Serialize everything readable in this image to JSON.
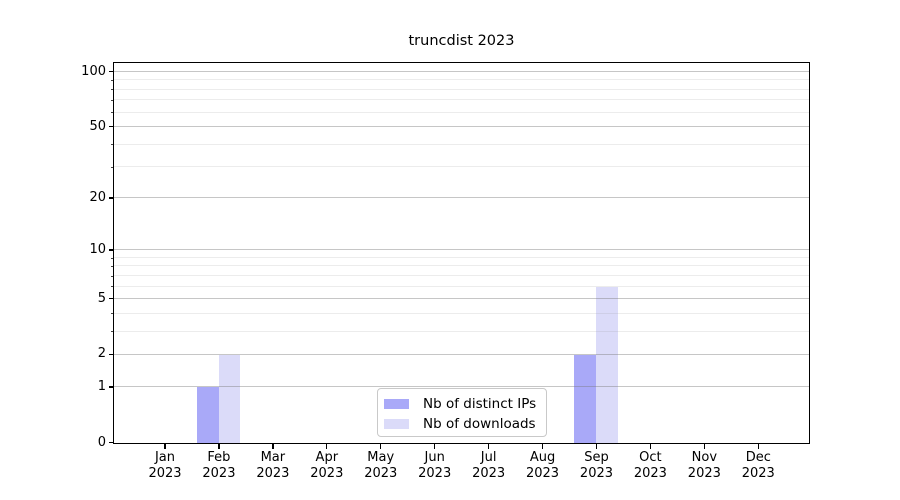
{
  "chart_data": {
    "type": "bar",
    "title": "truncdist 2023",
    "categories": [
      "Jan",
      "Feb",
      "Mar",
      "Apr",
      "May",
      "Jun",
      "Jul",
      "Aug",
      "Sep",
      "Oct",
      "Nov",
      "Dec"
    ],
    "x_year_label": "2023",
    "series": [
      {
        "name": "Nb of distinct IPs",
        "color": "#a9a9f8",
        "values": [
          0,
          1,
          0,
          0,
          0,
          0,
          0,
          0,
          2,
          0,
          0,
          0
        ]
      },
      {
        "name": "Nb of downloads",
        "color": "#dbdbf9",
        "values": [
          0,
          2,
          0,
          0,
          0,
          0,
          0,
          0,
          6,
          0,
          0,
          0
        ]
      }
    ],
    "xlabel": "",
    "ylabel": "",
    "y_scale": "log10(1+v)",
    "ylim": [
      0,
      113
    ],
    "y_tick_values": [
      0,
      1,
      2,
      5,
      10,
      20,
      50,
      100
    ],
    "y_minor_gridline_values": [
      3,
      4,
      6,
      7,
      8,
      9,
      30,
      40,
      60,
      70,
      80,
      90
    ],
    "grid": "horizontal",
    "legend": {
      "position": "inside-bottom-center",
      "items": [
        "Nb of distinct IPs",
        "Nb of downloads"
      ]
    }
  }
}
